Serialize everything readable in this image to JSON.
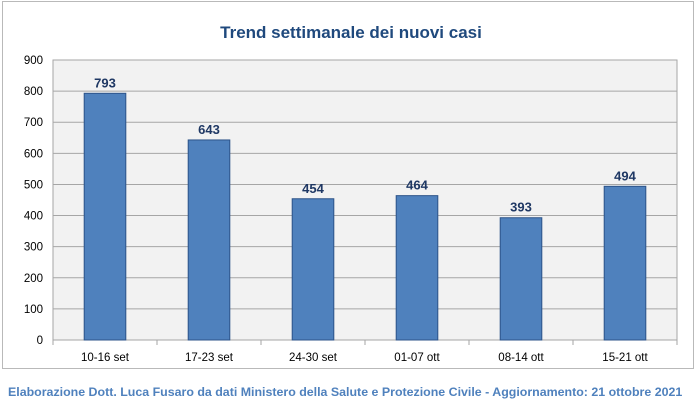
{
  "chart_data": {
    "type": "bar",
    "title": "Trend settimanale dei nuovi casi",
    "xlabel": "",
    "ylabel": "",
    "categories": [
      "10-16 set",
      "17-23 set",
      "24-30 set",
      "01-07 ott",
      "08-14 ott",
      "15-21 ott"
    ],
    "values": [
      793,
      643,
      454,
      464,
      393,
      494
    ],
    "ylim": [
      0,
      900
    ],
    "yticks": [
      0,
      100,
      200,
      300,
      400,
      500,
      600,
      700,
      800,
      900
    ],
    "grid": true,
    "legend": "none",
    "colors": {
      "bar": "#4f81bd",
      "bar_border": "#2c5389",
      "title": "#1f497d",
      "data_label": "#1f3864",
      "plot_background": "#f2f2f2"
    }
  },
  "footer": {
    "credit": "Elaborazione Dott. Luca Fusaro da dati Ministero della Salute e Protezione Civile - Aggiornamento: 21 ottobre 2021"
  }
}
